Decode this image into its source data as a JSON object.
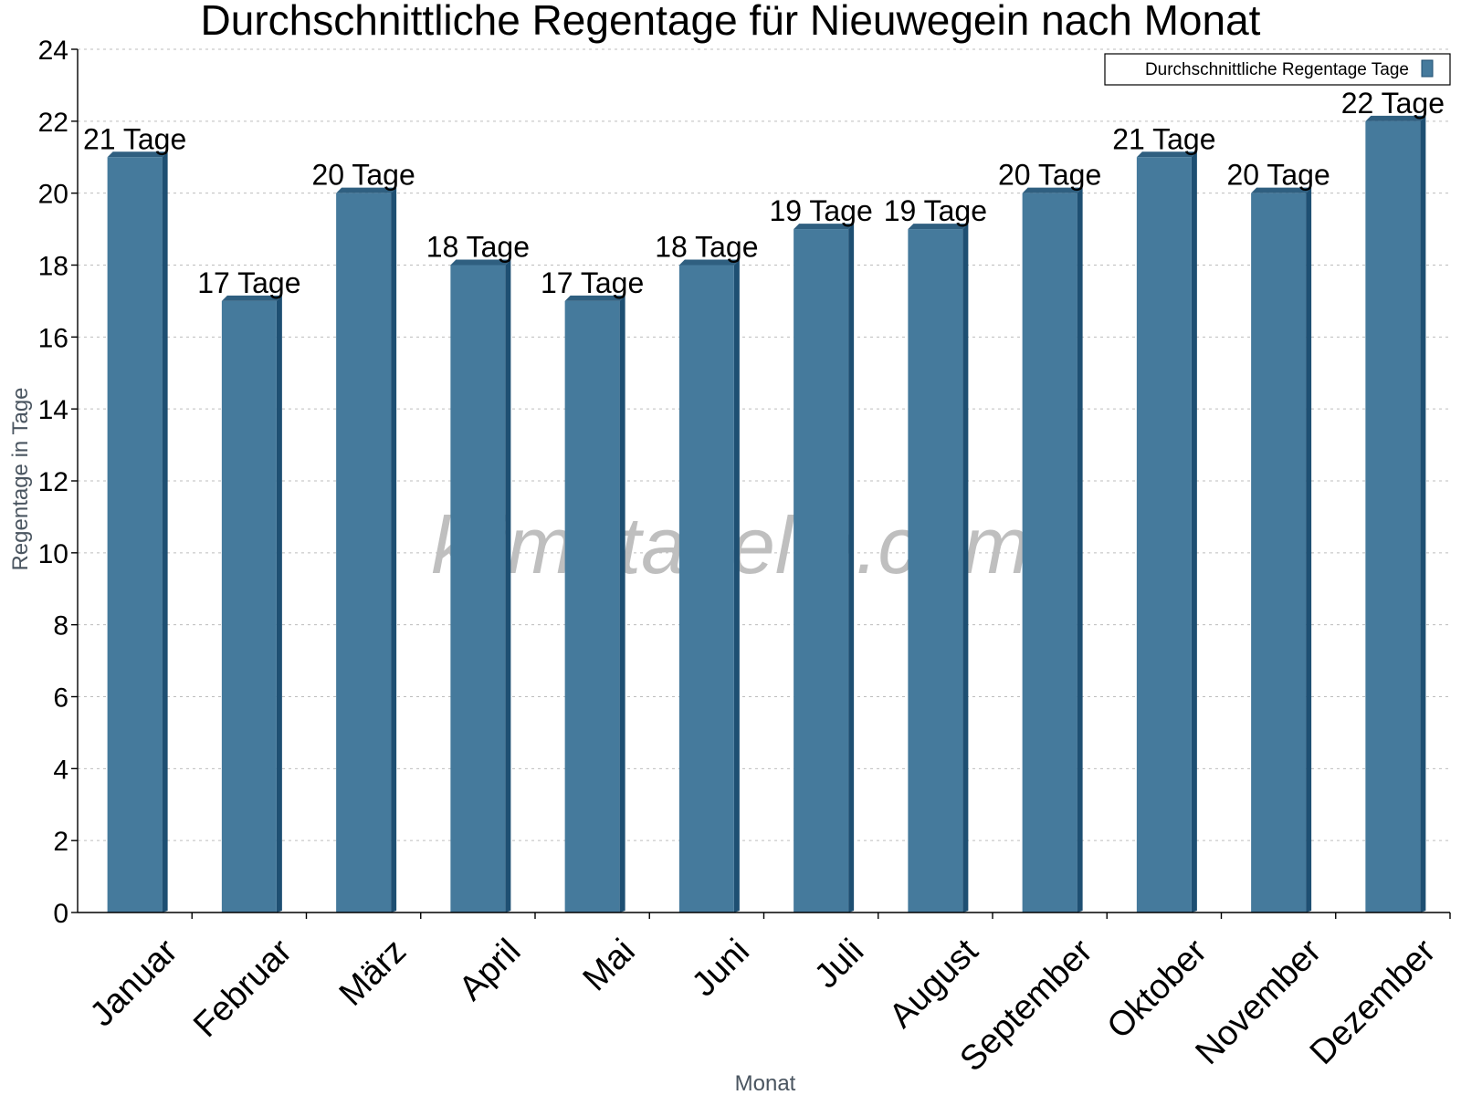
{
  "chart_data": {
    "type": "bar",
    "title": "Durchschnittliche Regentage für Nieuwegein nach Monat",
    "xlabel": "Monat",
    "ylabel": "Regentage in Tage",
    "ylim": [
      0,
      24
    ],
    "ytick_step": 2,
    "grid": true,
    "legend_position": "top-right",
    "categories": [
      "Januar",
      "Februar",
      "März",
      "April",
      "Mai",
      "Juni",
      "Juli",
      "August",
      "September",
      "Oktober",
      "November",
      "Dezember"
    ],
    "series": [
      {
        "name": "Durchschnittliche Regentage Tage",
        "values": [
          21,
          17,
          20,
          18,
          17,
          18,
          19,
          19,
          20,
          21,
          20,
          22
        ],
        "labels": [
          "21 Tage",
          "17 Tage",
          "20 Tage",
          "18 Tage",
          "17 Tage",
          "18 Tage",
          "19 Tage",
          "19 Tage",
          "20 Tage",
          "21 Tage",
          "20 Tage",
          "22 Tage"
        ]
      }
    ],
    "colors": {
      "bar": "#457a9c",
      "bar_side": "#1e4f72",
      "bar_top": "#2f5f80"
    },
    "watermark": "klimatabelle.com"
  }
}
